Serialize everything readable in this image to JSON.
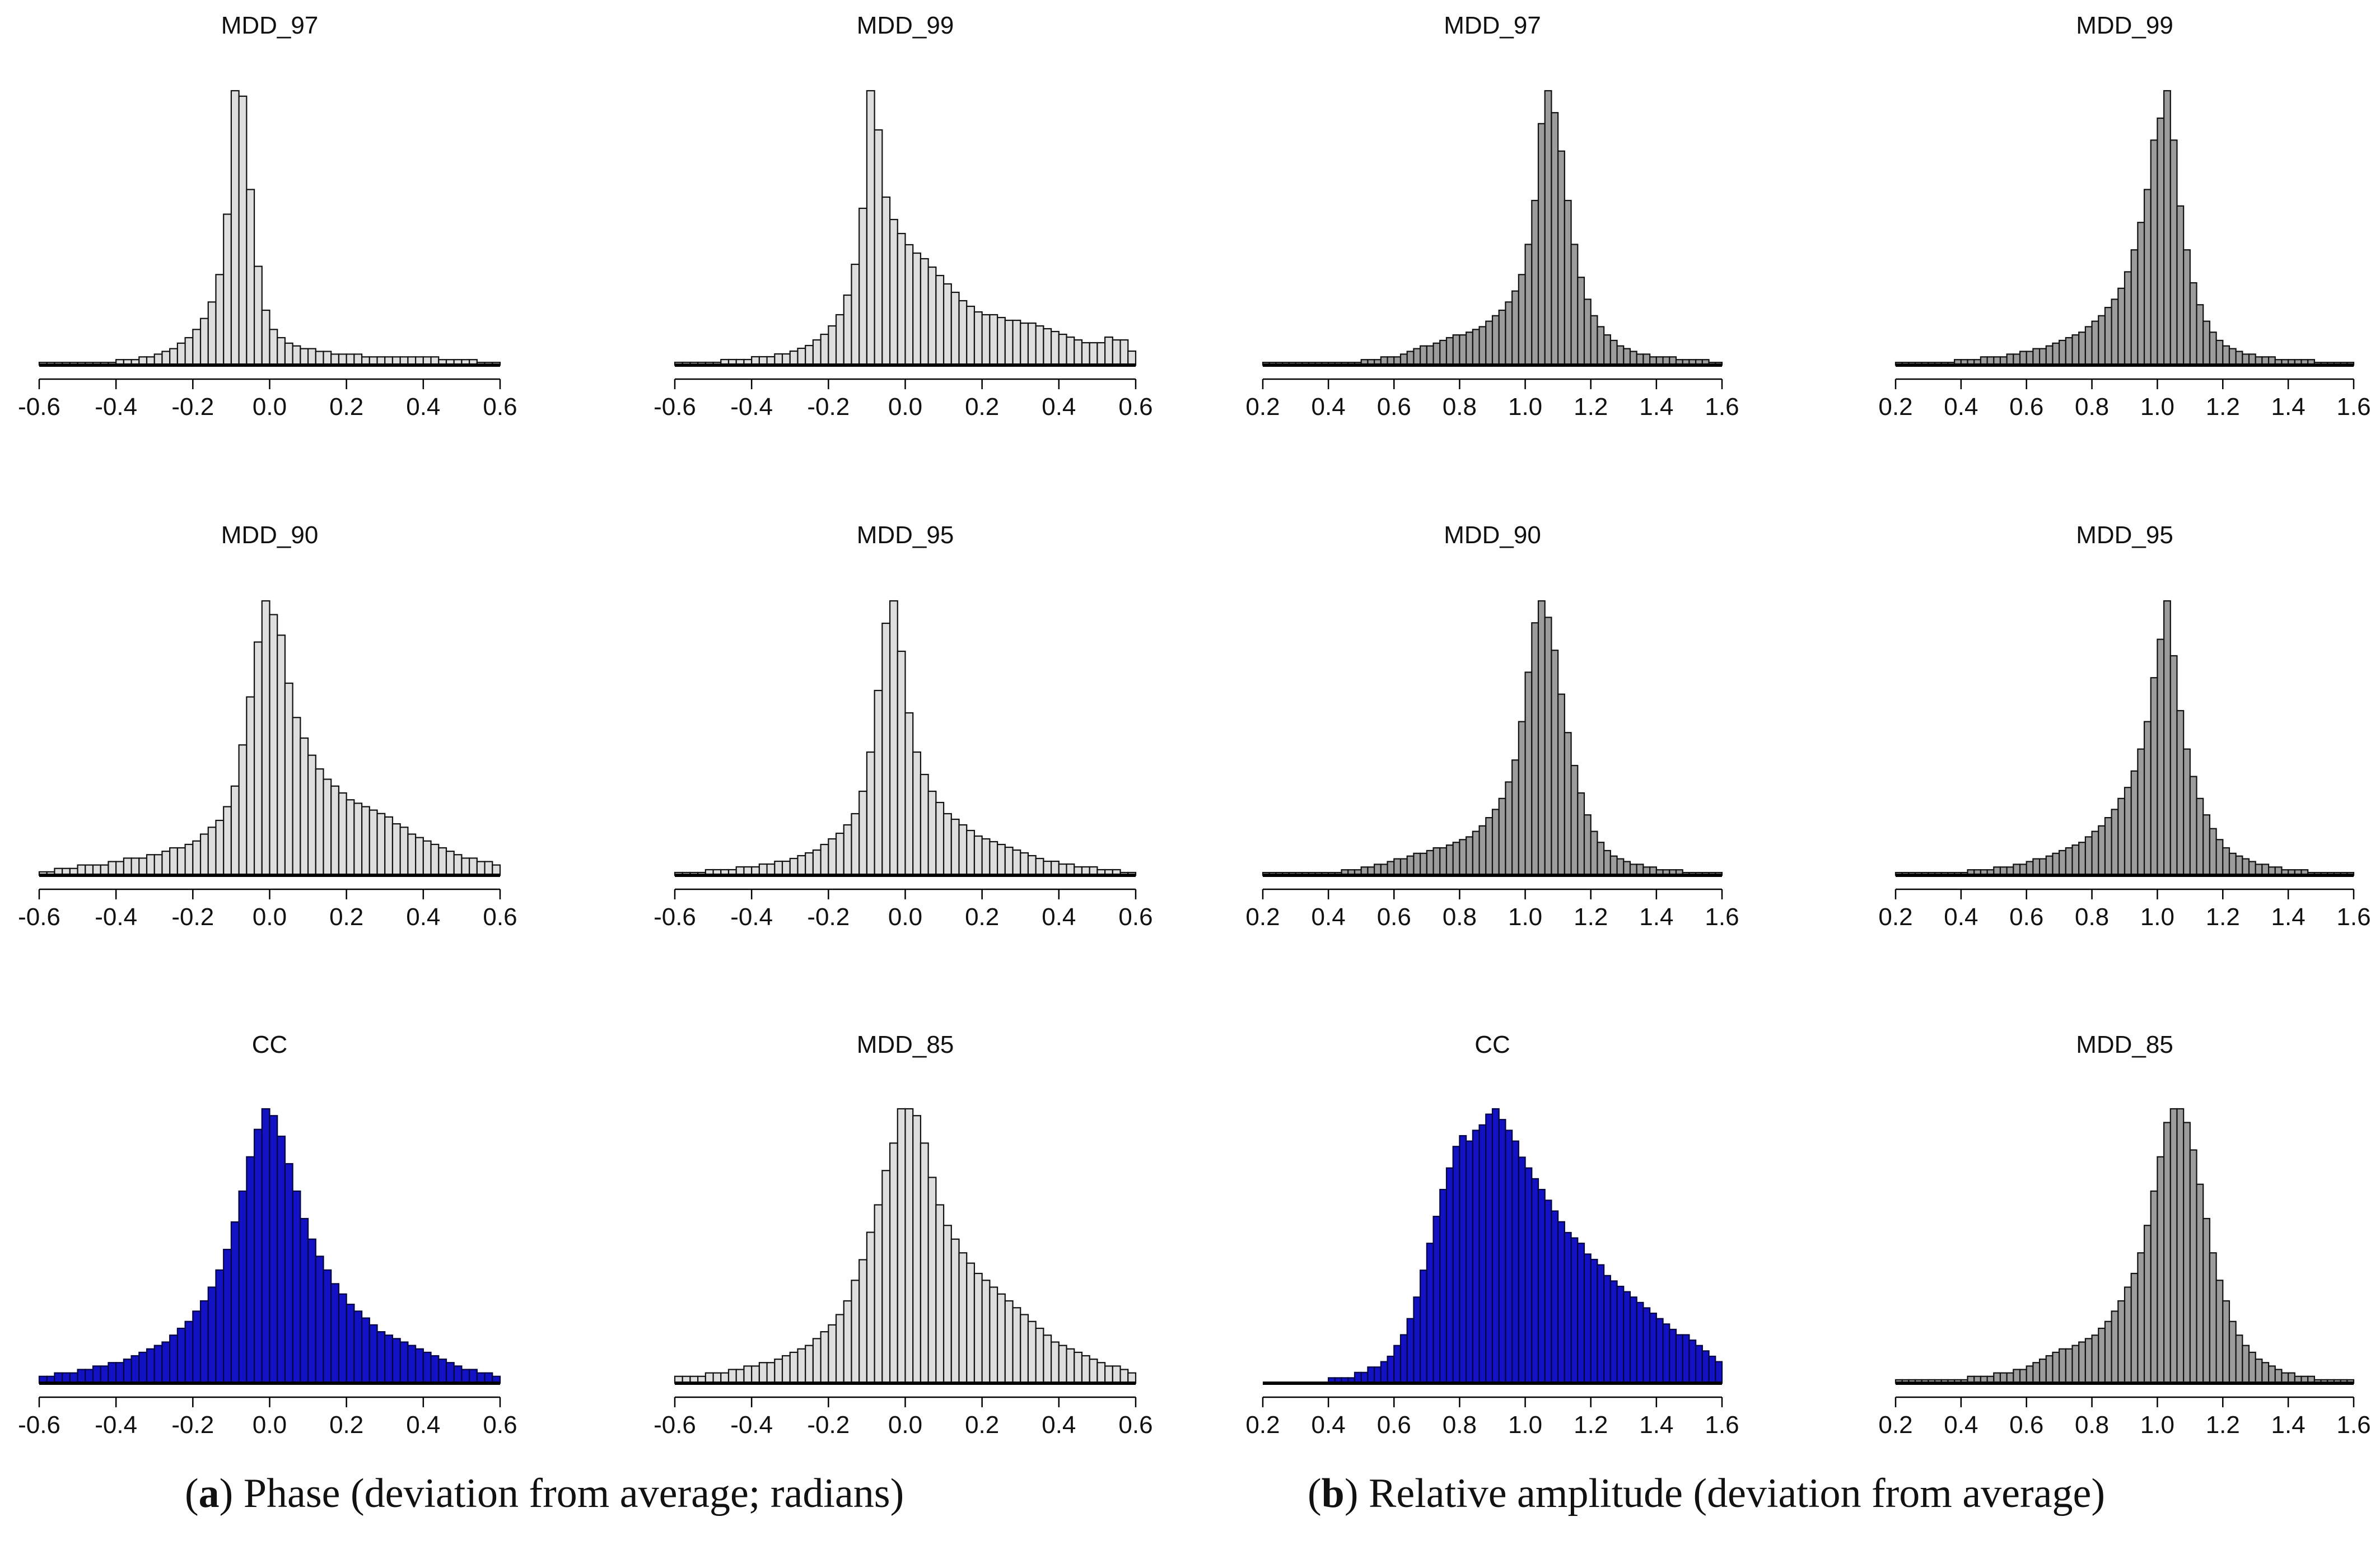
{
  "captions": {
    "a_letter": "a",
    "a_text": "Phase (deviation from average; radians)",
    "b_letter": "b",
    "b_text": "Relative amplitude (deviation from average)"
  },
  "colors": {
    "gray_light": "#dedede",
    "gray_dark": "#9c9c9c",
    "blue": "#1212c4",
    "outline": "#111111"
  },
  "chart_data": [
    {
      "type": "bar",
      "panel": "a",
      "title": "MDD_97",
      "xlim": [
        -0.6,
        0.6
      ],
      "ticks": [
        "-0.6",
        "-0.4",
        "-0.2",
        "0.0",
        "0.2",
        "0.4",
        "0.6"
      ],
      "tick_values": [
        -0.6,
        -0.4,
        -0.2,
        0.0,
        0.2,
        0.4,
        0.6
      ],
      "fill": "gray_light",
      "bin_start": -0.6,
      "bin_width": 0.02,
      "values": [
        1,
        1,
        1,
        1,
        1,
        1,
        1,
        1,
        1,
        1,
        2,
        2,
        2,
        3,
        3,
        4,
        5,
        6,
        8,
        10,
        13,
        17,
        23,
        33,
        55,
        100,
        98,
        64,
        36,
        20,
        13,
        10,
        8,
        7,
        6,
        6,
        5,
        5,
        4,
        4,
        4,
        4,
        3,
        3,
        3,
        3,
        3,
        3,
        3,
        3,
        3,
        3,
        2,
        2,
        2,
        2,
        2,
        1,
        1,
        1
      ]
    },
    {
      "type": "bar",
      "panel": "a",
      "title": "MDD_99",
      "xlim": [
        -0.6,
        0.6
      ],
      "ticks": [
        "-0.6",
        "-0.4",
        "-0.2",
        "0.0",
        "0.2",
        "0.4",
        "0.6"
      ],
      "tick_values": [
        -0.6,
        -0.4,
        -0.2,
        0.0,
        0.2,
        0.4,
        0.6
      ],
      "fill": "gray_light",
      "bin_start": -0.6,
      "bin_width": 0.02,
      "values": [
        1,
        1,
        1,
        1,
        1,
        1,
        2,
        2,
        2,
        2,
        3,
        3,
        3,
        4,
        4,
        5,
        6,
        7,
        9,
        11,
        14,
        18,
        25,
        36,
        56,
        98,
        84,
        60,
        52,
        47,
        43,
        40,
        38,
        35,
        32,
        29,
        26,
        23,
        21,
        19,
        18,
        18,
        17,
        16,
        16,
        15,
        15,
        14,
        13,
        12,
        11,
        10,
        9,
        8,
        8,
        8,
        10,
        9,
        9,
        5
      ]
    },
    {
      "type": "bar",
      "panel": "b",
      "title": "MDD_97",
      "xlim": [
        0.2,
        1.6
      ],
      "ticks": [
        "0.2",
        "0.4",
        "0.6",
        "0.8",
        "1.0",
        "1.2",
        "1.4",
        "1.6"
      ],
      "tick_values": [
        0.2,
        0.4,
        0.6,
        0.8,
        1.0,
        1.2,
        1.4,
        1.6
      ],
      "fill": "gray_dark",
      "bin_start": 0.2,
      "bin_width": 0.02,
      "values": [
        1,
        1,
        1,
        1,
        1,
        1,
        1,
        1,
        1,
        1,
        1,
        1,
        1,
        1,
        1,
        2,
        2,
        2,
        3,
        3,
        3,
        4,
        5,
        6,
        7,
        7,
        8,
        9,
        10,
        11,
        11,
        12,
        13,
        14,
        16,
        18,
        20,
        23,
        27,
        33,
        44,
        60,
        88,
        100,
        92,
        78,
        60,
        44,
        32,
        24,
        18,
        14,
        11,
        9,
        7,
        6,
        5,
        4,
        4,
        3,
        3,
        3,
        3,
        2,
        2,
        2,
        2,
        2,
        1,
        1
      ]
    },
    {
      "type": "bar",
      "panel": "b",
      "title": "MDD_99",
      "xlim": [
        0.2,
        1.6
      ],
      "ticks": [
        "0.2",
        "0.4",
        "0.6",
        "0.8",
        "1.0",
        "1.2",
        "1.4",
        "1.6"
      ],
      "tick_values": [
        0.2,
        0.4,
        0.6,
        0.8,
        1.0,
        1.2,
        1.4,
        1.6
      ],
      "fill": "gray_dark",
      "bin_start": 0.2,
      "bin_width": 0.02,
      "values": [
        1,
        1,
        1,
        1,
        1,
        1,
        1,
        1,
        1,
        2,
        2,
        2,
        2,
        3,
        3,
        3,
        3,
        4,
        4,
        5,
        5,
        6,
        6,
        7,
        8,
        9,
        10,
        11,
        12,
        14,
        16,
        18,
        21,
        24,
        28,
        34,
        42,
        52,
        64,
        82,
        90,
        100,
        82,
        58,
        42,
        30,
        22,
        16,
        12,
        9,
        7,
        6,
        5,
        4,
        4,
        3,
        3,
        3,
        2,
        2,
        2,
        2,
        2,
        2,
        1,
        1,
        1,
        1,
        1,
        1
      ]
    },
    {
      "type": "bar",
      "panel": "a",
      "title": "MDD_90",
      "xlim": [
        -0.6,
        0.6
      ],
      "ticks": [
        "-0.6",
        "-0.4",
        "-0.2",
        "0.0",
        "0.2",
        "0.4",
        "0.6"
      ],
      "tick_values": [
        -0.6,
        -0.4,
        -0.2,
        0.0,
        0.2,
        0.4,
        0.6
      ],
      "fill": "gray_light",
      "bin_start": -0.6,
      "bin_width": 0.02,
      "values": [
        1,
        1,
        2,
        2,
        2,
        3,
        3,
        3,
        3,
        4,
        4,
        5,
        5,
        5,
        6,
        6,
        7,
        8,
        8,
        9,
        10,
        12,
        14,
        16,
        20,
        26,
        38,
        52,
        68,
        80,
        76,
        70,
        56,
        46,
        40,
        35,
        31,
        28,
        26,
        24,
        22,
        21,
        20,
        19,
        18,
        17,
        15,
        14,
        12,
        11,
        10,
        9,
        8,
        7,
        6,
        5,
        5,
        4,
        4,
        3
      ]
    },
    {
      "type": "bar",
      "panel": "a",
      "title": "MDD_95",
      "xlim": [
        -0.6,
        0.6
      ],
      "ticks": [
        "-0.6",
        "-0.4",
        "-0.2",
        "0.0",
        "0.2",
        "0.4",
        "0.6"
      ],
      "tick_values": [
        -0.6,
        -0.4,
        -0.2,
        0.0,
        0.2,
        0.4,
        0.6
      ],
      "fill": "gray_light",
      "bin_start": -0.6,
      "bin_width": 0.02,
      "values": [
        1,
        1,
        1,
        1,
        2,
        2,
        2,
        2,
        3,
        3,
        3,
        4,
        4,
        5,
        5,
        6,
        7,
        8,
        9,
        11,
        13,
        15,
        18,
        22,
        30,
        44,
        66,
        90,
        98,
        80,
        58,
        44,
        36,
        30,
        26,
        22,
        20,
        18,
        16,
        14,
        13,
        12,
        11,
        10,
        9,
        8,
        7,
        6,
        5,
        5,
        4,
        4,
        3,
        3,
        3,
        2,
        2,
        2,
        1,
        1
      ]
    },
    {
      "type": "bar",
      "panel": "b",
      "title": "MDD_90",
      "xlim": [
        0.2,
        1.6
      ],
      "ticks": [
        "0.2",
        "0.4",
        "0.6",
        "0.8",
        "1.0",
        "1.2",
        "1.4",
        "1.6"
      ],
      "tick_values": [
        0.2,
        0.4,
        0.6,
        0.8,
        1.0,
        1.2,
        1.4,
        1.6
      ],
      "fill": "gray_dark",
      "bin_start": 0.2,
      "bin_width": 0.02,
      "values": [
        1,
        1,
        1,
        1,
        1,
        1,
        1,
        1,
        1,
        1,
        1,
        1,
        2,
        2,
        2,
        3,
        3,
        4,
        4,
        5,
        6,
        6,
        7,
        8,
        8,
        9,
        10,
        10,
        11,
        12,
        13,
        14,
        16,
        18,
        21,
        24,
        28,
        34,
        42,
        56,
        74,
        92,
        100,
        94,
        82,
        66,
        52,
        40,
        30,
        22,
        16,
        12,
        9,
        7,
        6,
        5,
        4,
        4,
        3,
        3,
        2,
        2,
        2,
        2,
        1,
        1,
        1,
        1,
        1,
        1
      ]
    },
    {
      "type": "bar",
      "panel": "b",
      "title": "MDD_95",
      "xlim": [
        0.2,
        1.6
      ],
      "ticks": [
        "0.2",
        "0.4",
        "0.6",
        "0.8",
        "1.0",
        "1.2",
        "1.4",
        "1.6"
      ],
      "tick_values": [
        0.2,
        0.4,
        0.6,
        0.8,
        1.0,
        1.2,
        1.4,
        1.6
      ],
      "fill": "gray_dark",
      "bin_start": 0.2,
      "bin_width": 0.02,
      "values": [
        1,
        1,
        1,
        1,
        1,
        1,
        1,
        1,
        1,
        1,
        1,
        2,
        2,
        2,
        2,
        3,
        3,
        3,
        4,
        4,
        5,
        6,
        6,
        7,
        8,
        9,
        10,
        11,
        12,
        14,
        16,
        18,
        21,
        24,
        28,
        32,
        38,
        46,
        56,
        72,
        86,
        100,
        80,
        60,
        46,
        36,
        28,
        22,
        17,
        13,
        10,
        8,
        7,
        6,
        5,
        4,
        4,
        3,
        3,
        2,
        2,
        2,
        2,
        1,
        1,
        1,
        1,
        1,
        1,
        1
      ]
    },
    {
      "type": "bar",
      "panel": "a",
      "title": "CC",
      "xlim": [
        -0.6,
        0.6
      ],
      "ticks": [
        "-0.6",
        "-0.4",
        "-0.2",
        "0.0",
        "0.2",
        "0.4",
        "0.6"
      ],
      "tick_values": [
        -0.6,
        -0.4,
        -0.2,
        0.0,
        0.2,
        0.4,
        0.6
      ],
      "fill": "blue",
      "bin_start": -0.6,
      "bin_width": 0.02,
      "values": [
        2,
        2,
        3,
        3,
        3,
        4,
        4,
        5,
        5,
        6,
        6,
        7,
        8,
        9,
        10,
        11,
        12,
        14,
        16,
        18,
        21,
        24,
        28,
        33,
        39,
        47,
        56,
        66,
        74,
        80,
        78,
        72,
        64,
        56,
        48,
        42,
        37,
        33,
        29,
        26,
        23,
        21,
        19,
        17,
        15,
        14,
        13,
        12,
        11,
        10,
        9,
        8,
        7,
        6,
        5,
        4,
        4,
        3,
        3,
        2
      ]
    },
    {
      "type": "bar",
      "panel": "a",
      "title": "MDD_85",
      "xlim": [
        -0.6,
        0.6
      ],
      "ticks": [
        "-0.6",
        "-0.4",
        "-0.2",
        "0.0",
        "0.2",
        "0.4",
        "0.6"
      ],
      "tick_values": [
        -0.6,
        -0.4,
        -0.2,
        0.0,
        0.2,
        0.4,
        0.6
      ],
      "fill": "gray_light",
      "bin_start": -0.6,
      "bin_width": 0.02,
      "values": [
        2,
        2,
        2,
        2,
        3,
        3,
        3,
        4,
        4,
        5,
        5,
        6,
        6,
        7,
        8,
        9,
        10,
        11,
        13,
        15,
        17,
        20,
        24,
        30,
        36,
        44,
        52,
        62,
        70,
        80,
        80,
        78,
        70,
        60,
        52,
        46,
        42,
        38,
        35,
        32,
        30,
        28,
        26,
        24,
        22,
        20,
        18,
        16,
        14,
        12,
        11,
        10,
        9,
        8,
        7,
        6,
        5,
        5,
        4,
        3
      ]
    },
    {
      "type": "bar",
      "panel": "b",
      "title": "CC",
      "xlim": [
        0.2,
        1.6
      ],
      "ticks": [
        "0.2",
        "0.4",
        "0.6",
        "0.8",
        "1.0",
        "1.2",
        "1.4",
        "1.6"
      ],
      "tick_values": [
        0.2,
        0.4,
        0.6,
        0.8,
        1.0,
        1.2,
        1.4,
        1.6
      ],
      "fill": "blue",
      "bin_start": 0.2,
      "bin_width": 0.02,
      "values": [
        0,
        0,
        0,
        0,
        0,
        0,
        0,
        0,
        0,
        0,
        1,
        1,
        1,
        1,
        2,
        2,
        3,
        3,
        4,
        5,
        7,
        9,
        12,
        16,
        21,
        26,
        31,
        36,
        40,
        44,
        46,
        45,
        47,
        48,
        50,
        51,
        49,
        47,
        45,
        42,
        40,
        38,
        36,
        34,
        32,
        30,
        28,
        27,
        26,
        24,
        23,
        22,
        20,
        19,
        18,
        17,
        16,
        15,
        14,
        13,
        12,
        11,
        10,
        9,
        9,
        8,
        7,
        6,
        5,
        4
      ]
    },
    {
      "type": "bar",
      "panel": "b",
      "title": "MDD_85",
      "xlim": [
        0.2,
        1.6
      ],
      "ticks": [
        "0.2",
        "0.4",
        "0.6",
        "0.8",
        "1.0",
        "1.2",
        "1.4",
        "1.6"
      ],
      "tick_values": [
        0.2,
        0.4,
        0.6,
        0.8,
        1.0,
        1.2,
        1.4,
        1.6
      ],
      "fill": "gray_dark",
      "bin_start": 0.2,
      "bin_width": 0.02,
      "values": [
        1,
        1,
        1,
        1,
        1,
        1,
        1,
        1,
        1,
        1,
        1,
        2,
        2,
        2,
        2,
        3,
        3,
        3,
        4,
        4,
        5,
        6,
        7,
        8,
        9,
        10,
        10,
        11,
        12,
        13,
        14,
        16,
        18,
        21,
        24,
        28,
        32,
        38,
        46,
        56,
        66,
        76,
        80,
        80,
        76,
        68,
        58,
        48,
        38,
        30,
        24,
        18,
        14,
        11,
        9,
        7,
        6,
        5,
        4,
        3,
        3,
        2,
        2,
        2,
        1,
        1,
        1,
        1,
        1,
        1
      ]
    }
  ]
}
